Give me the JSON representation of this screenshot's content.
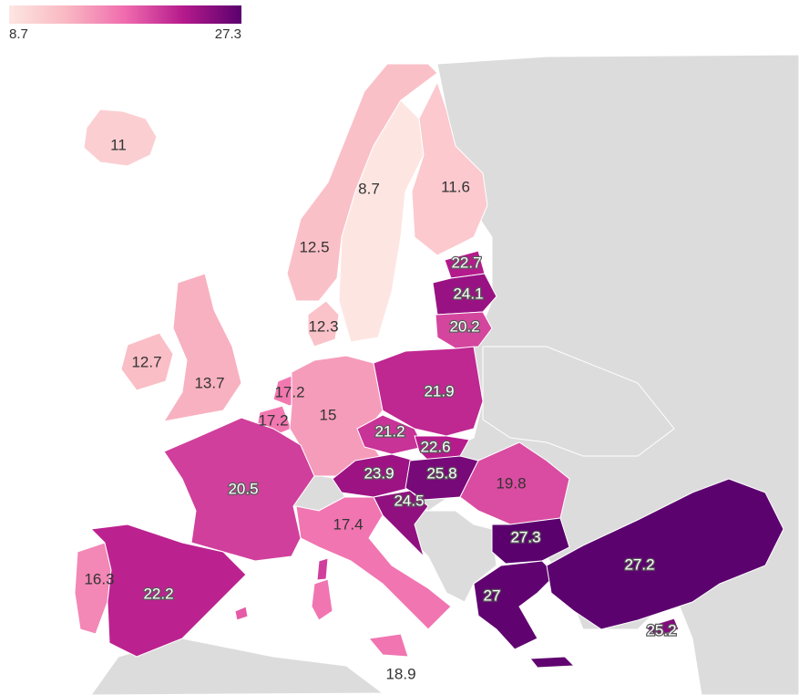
{
  "legend": {
    "min": "8.7",
    "max": "27.3",
    "colors": [
      "#fde6e2",
      "#f9b7c2",
      "#f06bae",
      "#b51a8c",
      "#5a016e"
    ]
  },
  "map_data": [
    {
      "id": "iceland",
      "value": "11"
    },
    {
      "id": "sweden",
      "value": "8.7"
    },
    {
      "id": "finland",
      "value": "11.6"
    },
    {
      "id": "norway",
      "value": "12.5"
    },
    {
      "id": "estonia",
      "value": "22.7"
    },
    {
      "id": "latvia",
      "value": "24.1"
    },
    {
      "id": "lithuania",
      "value": "20.2"
    },
    {
      "id": "denmark",
      "value": "12.3"
    },
    {
      "id": "ireland",
      "value": "12.7"
    },
    {
      "id": "united-kingdom",
      "value": "13.7"
    },
    {
      "id": "netherlands",
      "value": "17.2"
    },
    {
      "id": "belgium",
      "value": "17.2"
    },
    {
      "id": "germany",
      "value": "15"
    },
    {
      "id": "poland",
      "value": "21.9"
    },
    {
      "id": "czechia",
      "value": "21.2"
    },
    {
      "id": "slovakia",
      "value": "22.6"
    },
    {
      "id": "austria",
      "value": "23.9"
    },
    {
      "id": "hungary",
      "value": "25.8"
    },
    {
      "id": "romania",
      "value": "19.8"
    },
    {
      "id": "croatia",
      "value": "24.5"
    },
    {
      "id": "france",
      "value": "20.5"
    },
    {
      "id": "italy",
      "value": "17.4"
    },
    {
      "id": "bulgaria",
      "value": "27.3"
    },
    {
      "id": "turkey",
      "value": "27.2"
    },
    {
      "id": "portugal",
      "value": "16.3"
    },
    {
      "id": "spain",
      "value": "22.2"
    },
    {
      "id": "greece",
      "value": "27"
    },
    {
      "id": "cyprus",
      "value": "25.2"
    },
    {
      "id": "malta",
      "value": "18.9"
    }
  ]
}
